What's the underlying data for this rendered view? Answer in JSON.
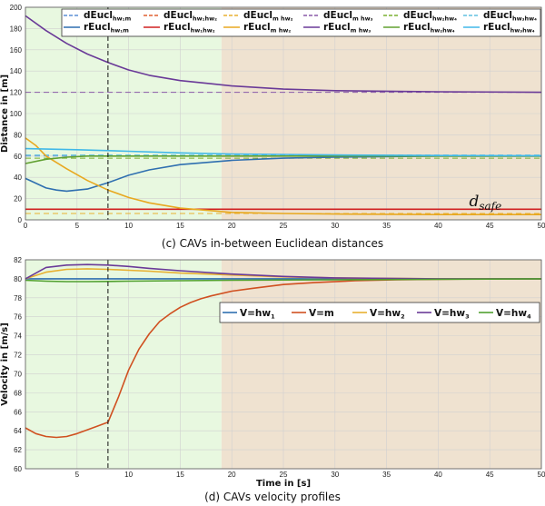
{
  "chart_data": [
    {
      "type": "line",
      "caption": "(c) CAVs in-between Euclidean distances",
      "ylabel": "Distance in [m]",
      "xlabel": "",
      "xlim": [
        0,
        50
      ],
      "ylim": [
        0,
        200
      ],
      "xticks": [
        0,
        5,
        10,
        15,
        20,
        25,
        30,
        35,
        40,
        45,
        50
      ],
      "yticks": [
        0,
        20,
        40,
        60,
        80,
        100,
        120,
        140,
        160,
        180,
        200
      ],
      "grid": true,
      "shading": [
        {
          "from": 0,
          "to": 19,
          "color": "#e8f8e0"
        },
        {
          "from": 19,
          "to": 50,
          "color": "#efe2d0"
        }
      ],
      "vline_x": 8,
      "annotation": {
        "base": "d",
        "sub": "safe",
        "x": 43,
        "y": 13
      },
      "legend_position": "top",
      "series": [
        {
          "name": "dEucl",
          "sub": "hw₁m",
          "style": "dashed",
          "color": "#5b8fd6",
          "x": [
            0,
            50
          ],
          "y": [
            60,
            60
          ]
        },
        {
          "name": "dEucl",
          "sub": "hw₁hw₂",
          "style": "dashed",
          "color": "#e06030",
          "x": [
            0,
            50
          ],
          "y": [
            10,
            10
          ]
        },
        {
          "name": "dEucl",
          "sub": "m hw₂",
          "style": "dashed",
          "color": "#e8b030",
          "x": [
            0,
            50
          ],
          "y": [
            6,
            6
          ]
        },
        {
          "name": "dEucl",
          "sub": "m hw₃",
          "style": "dashed",
          "color": "#8a5aa8",
          "x": [
            0,
            50
          ],
          "y": [
            120,
            120
          ]
        },
        {
          "name": "dEucl",
          "sub": "hw₂hw₄",
          "style": "dashed",
          "color": "#7ab030",
          "x": [
            0,
            50
          ],
          "y": [
            58,
            58
          ]
        },
        {
          "name": "dEucl",
          "sub": "hw₃hw₄",
          "style": "dashed",
          "color": "#60c0e0",
          "x": [
            0,
            50
          ],
          "y": [
            61,
            61
          ]
        },
        {
          "name": "rEucl",
          "sub": "hw₁m",
          "style": "solid",
          "color": "#2f6fb0",
          "x": [
            0,
            2,
            3,
            4,
            6,
            8,
            10,
            12,
            15,
            20,
            25,
            30,
            40,
            50
          ],
          "y": [
            39,
            30,
            28,
            27,
            29,
            35,
            42,
            47,
            52,
            56,
            58,
            59,
            60,
            60
          ]
        },
        {
          "name": "rEucl",
          "sub": "hw₁hw₂",
          "style": "solid",
          "color": "#d02020",
          "x": [
            0,
            50
          ],
          "y": [
            10,
            10
          ]
        },
        {
          "name": "rEucl",
          "sub": "m hw₂",
          "style": "solid",
          "color": "#e8a820",
          "x": [
            0,
            1,
            2,
            4,
            6,
            8,
            10,
            12,
            15,
            20,
            25,
            30,
            40,
            50
          ],
          "y": [
            77,
            70,
            60,
            48,
            37,
            28,
            21,
            16,
            11,
            7,
            6,
            5.5,
            5,
            5
          ]
        },
        {
          "name": "rEucl",
          "sub": "m hw₃",
          "style": "solid",
          "color": "#6a3a98",
          "x": [
            0,
            2,
            4,
            6,
            8,
            10,
            12,
            15,
            18,
            20,
            25,
            30,
            35,
            40,
            50
          ],
          "y": [
            192,
            178,
            166,
            156,
            148,
            141,
            136,
            131,
            128,
            126,
            123,
            121.5,
            121,
            120.5,
            120
          ]
        },
        {
          "name": "rEucl",
          "sub": "hw₂hw₄",
          "style": "solid",
          "color": "#60a030",
          "x": [
            0,
            2,
            4,
            6,
            8,
            10,
            15,
            20,
            30,
            50
          ],
          "y": [
            53,
            57,
            59,
            60,
            60,
            60,
            60,
            60,
            60,
            60
          ]
        },
        {
          "name": "rEucl",
          "sub": "hw₃hw₄",
          "style": "solid",
          "color": "#40b8e8",
          "x": [
            0,
            5,
            10,
            15,
            20,
            25,
            30,
            40,
            50
          ],
          "y": [
            67,
            66,
            64.5,
            63,
            62,
            61.5,
            61,
            60.5,
            60.3
          ]
        }
      ]
    },
    {
      "type": "line",
      "caption": "(d) CAVs velocity profiles",
      "ylabel": "Velocity in [m/s]",
      "xlabel": "Time in [s]",
      "xlim": [
        0,
        50
      ],
      "ylim": [
        60,
        82
      ],
      "xticks": [
        5,
        10,
        15,
        20,
        25,
        30,
        35,
        40,
        45,
        50
      ],
      "yticks": [
        60,
        62,
        64,
        66,
        68,
        70,
        72,
        74,
        76,
        78,
        80,
        82
      ],
      "grid": true,
      "shading": [
        {
          "from": 0,
          "to": 19,
          "color": "#e8f8e0"
        },
        {
          "from": 19,
          "to": 50,
          "color": "#efe2d0"
        }
      ],
      "vline_x": 8,
      "legend_position": "right",
      "series": [
        {
          "name": "V=hw",
          "sub": "1",
          "color": "#2f6fb0",
          "x": [
            0,
            5,
            10,
            15,
            20,
            30,
            40,
            50
          ],
          "y": [
            80,
            80,
            80,
            80,
            80,
            80,
            80,
            80
          ]
        },
        {
          "name": "V=m",
          "sub": "",
          "color": "#d05020",
          "x": [
            0,
            1,
            2,
            3,
            4,
            5,
            6,
            7,
            8,
            9,
            10,
            11,
            12,
            13,
            14,
            15,
            16,
            17,
            18,
            20,
            22,
            25,
            28,
            32,
            36,
            40,
            45,
            50
          ],
          "y": [
            64.3,
            63.7,
            63.4,
            63.3,
            63.4,
            63.7,
            64.1,
            64.5,
            64.9,
            67.5,
            70.4,
            72.6,
            74.2,
            75.5,
            76.3,
            77,
            77.5,
            77.9,
            78.2,
            78.7,
            79.0,
            79.4,
            79.6,
            79.8,
            79.9,
            79.95,
            80,
            80
          ]
        },
        {
          "name": "V=hw",
          "sub": "2",
          "color": "#e8b030",
          "x": [
            0,
            2,
            4,
            6,
            8,
            10,
            12,
            15,
            20,
            25,
            30,
            40,
            50
          ],
          "y": [
            80,
            80.7,
            81.0,
            81.05,
            81.0,
            80.9,
            80.8,
            80.6,
            80.4,
            80.2,
            80.1,
            80,
            80
          ]
        },
        {
          "name": "V=hw",
          "sub": "3",
          "color": "#6a3a98",
          "x": [
            0,
            2,
            4,
            6,
            8,
            10,
            12,
            15,
            20,
            25,
            30,
            40,
            50
          ],
          "y": [
            80,
            81.2,
            81.45,
            81.5,
            81.45,
            81.3,
            81.1,
            80.85,
            80.5,
            80.25,
            80.1,
            80,
            80
          ]
        },
        {
          "name": "V=hw",
          "sub": "4",
          "color": "#50a030",
          "x": [
            0,
            2,
            4,
            6,
            8,
            10,
            15,
            20,
            30,
            40,
            50
          ],
          "y": [
            79.85,
            79.75,
            79.7,
            79.7,
            79.72,
            79.75,
            79.8,
            79.85,
            79.9,
            79.95,
            80
          ]
        }
      ]
    }
  ]
}
